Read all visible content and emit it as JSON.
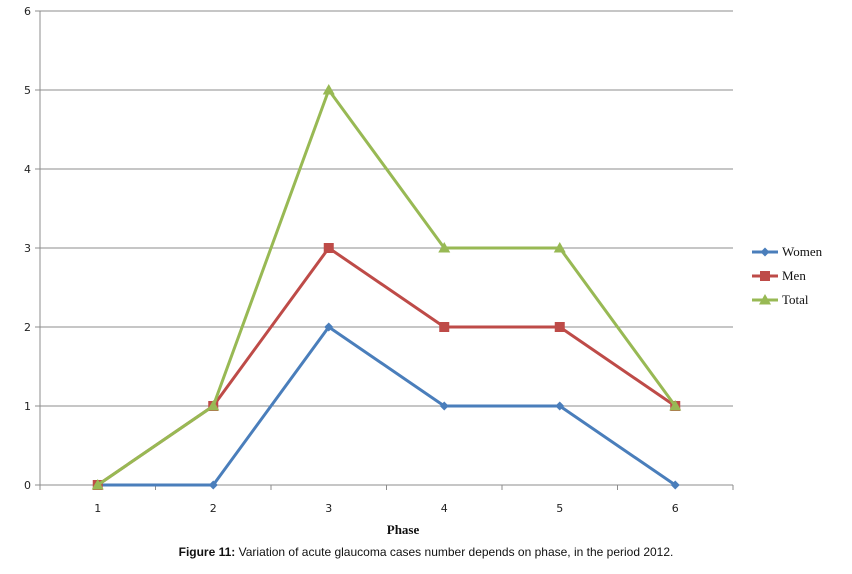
{
  "chart_data": {
    "type": "line",
    "categories": [
      "1",
      "2",
      "3",
      "4",
      "5",
      "6"
    ],
    "series": [
      {
        "name": "Women",
        "values": [
          0,
          0,
          2,
          1,
          1,
          0
        ],
        "color": "#4A7EBB",
        "marker": "diamond"
      },
      {
        "name": "Men",
        "values": [
          0,
          1,
          3,
          2,
          2,
          1
        ],
        "color": "#BE4B48",
        "marker": "square"
      },
      {
        "name": "Total",
        "values": [
          0,
          1,
          5,
          3,
          3,
          1
        ],
        "color": "#98B954",
        "marker": "triangle"
      }
    ],
    "xlabel": "Phase",
    "ylabel": "",
    "ylim": [
      0,
      6
    ],
    "yticks": [
      "0",
      "1",
      "2",
      "3",
      "4",
      "5",
      "6"
    ],
    "grid": true,
    "legend_position": "right"
  },
  "caption": {
    "label": "Figure 11:",
    "text": " Variation of acute glaucoma cases number depends on phase, in the period 2012."
  }
}
